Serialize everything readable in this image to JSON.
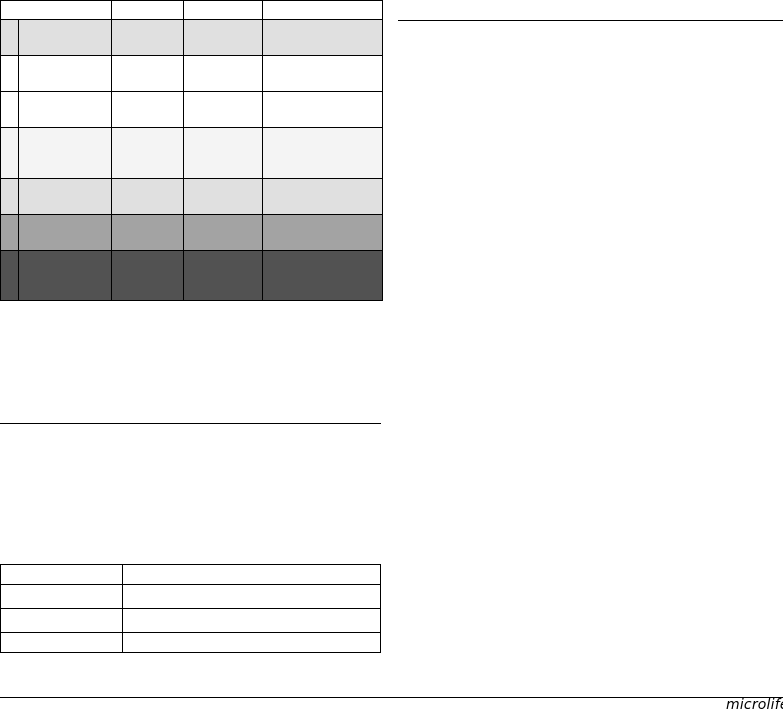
{
  "colors": {
    "row_light": "#e0e0e0",
    "row_white": "#ffffff",
    "row_faint": "#f4f4f4",
    "row_mid": "#a3a3a3",
    "row_dark": "#525252"
  },
  "footer": {
    "logo": "microlife"
  }
}
